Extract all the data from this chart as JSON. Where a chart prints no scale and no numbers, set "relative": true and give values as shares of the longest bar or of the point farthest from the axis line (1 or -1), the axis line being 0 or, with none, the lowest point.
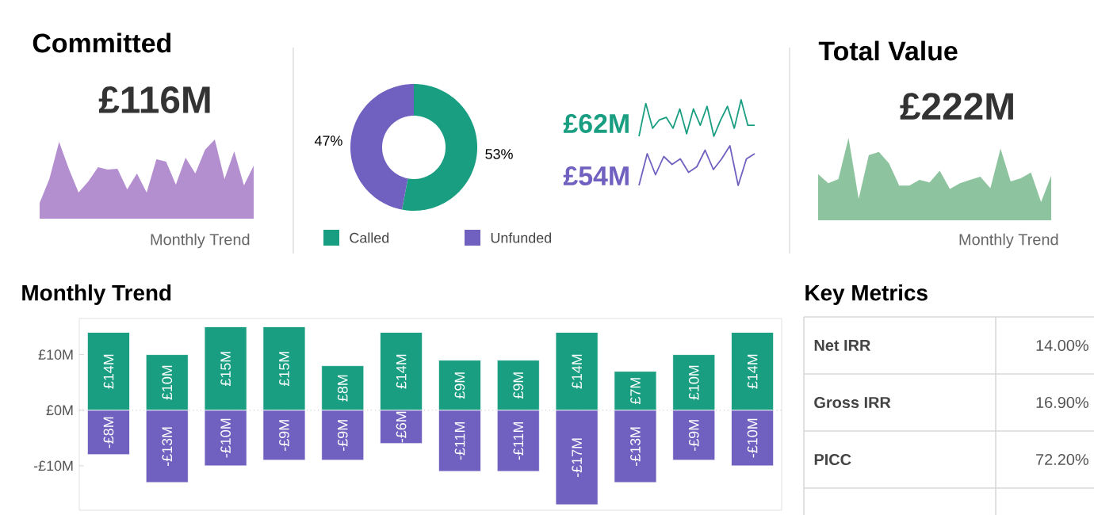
{
  "chart_data": [
    {
      "type": "area",
      "title": "Committed",
      "subtitle": "£116M",
      "xlabel": "Monthly Trend",
      "relative": true,
      "categories": [
        null,
        null,
        null,
        null,
        null,
        null,
        null,
        null,
        null,
        null,
        null,
        null,
        null,
        null,
        null,
        null,
        null,
        null,
        null,
        null,
        null,
        null,
        null
      ],
      "series": [
        {
          "color": "#b48fd0",
          "values": [
            0.2,
            0.5,
            0.97,
            0.63,
            0.33,
            0.47,
            0.65,
            0.62,
            0.63,
            0.37,
            0.57,
            0.33,
            0.75,
            0.72,
            0.43,
            0.77,
            0.57,
            0.87,
            1,
            0.5,
            0.85,
            0.42,
            0.67
          ]
        }
      ]
    },
    {
      "type": "donut",
      "categories": [
        "Called",
        "Unfunded"
      ],
      "values": [
        53,
        47
      ],
      "colors": [
        "#1a9e82",
        "#7060bf"
      ],
      "value_labels": [
        "53%",
        "47%"
      ],
      "legend": "bottom"
    },
    {
      "type": "line",
      "relative": true,
      "categories": [
        null,
        null,
        null,
        null,
        null,
        null,
        null,
        null,
        null,
        null,
        null,
        null,
        null,
        null,
        null,
        null,
        null,
        null
      ],
      "series": [
        {
          "name": "£62M",
          "color": "#1a9e82",
          "values": [
            0,
            0.9,
            0.22,
            0.45,
            0.52,
            0.22,
            0.75,
            0.07,
            0.75,
            0.3,
            0.82,
            0,
            0.45,
            0.82,
            0.22,
            1,
            0.3,
            0.3
          ]
        }
      ]
    },
    {
      "type": "line",
      "relative": true,
      "categories": [
        null,
        null,
        null,
        null,
        null,
        null,
        null,
        null,
        null,
        null,
        null,
        null,
        null,
        null,
        null
      ],
      "series": [
        {
          "name": "£54M",
          "color": "#7060bf",
          "values": [
            0,
            0.8,
            0.27,
            0.73,
            0.53,
            0.67,
            0.33,
            0.47,
            0.89,
            0.4,
            0.67,
            1,
            0,
            0.67,
            0.8
          ]
        }
      ]
    },
    {
      "type": "area",
      "title": "Total Value",
      "subtitle": "£222M",
      "xlabel": "Monthly Trend",
      "relative": true,
      "categories": [
        null,
        null,
        null,
        null,
        null,
        null,
        null,
        null,
        null,
        null,
        null,
        null,
        null,
        null,
        null,
        null,
        null,
        null,
        null,
        null,
        null,
        null,
        null,
        null
      ],
      "series": [
        {
          "color": "#8dc49f",
          "values": [
            0.56,
            0.45,
            0.5,
            1,
            0.26,
            0.79,
            0.83,
            0.69,
            0.42,
            0.42,
            0.49,
            0.46,
            0.6,
            0.38,
            0.45,
            0.49,
            0.53,
            0.39,
            0.87,
            0.47,
            0.51,
            0.58,
            0.22,
            0.54
          ]
        }
      ]
    },
    {
      "type": "bar",
      "title": "Monthly Trend",
      "stacked": true,
      "categories": [
        null,
        null,
        null,
        null,
        null,
        null,
        null,
        null,
        null,
        null,
        null,
        null
      ],
      "ylim": [
        -18,
        16.5
      ],
      "yticks": [
        {
          "value": -10,
          "label": "-£10M"
        },
        {
          "value": 0,
          "label": "£0M"
        },
        {
          "value": 10,
          "label": "£10M"
        }
      ],
      "ref_lines": [
        {
          "axis": "y",
          "value": 0,
          "color": "#999999",
          "line_style": "dotted"
        }
      ],
      "series": [
        {
          "color": "#1a9e82",
          "values": [
            14,
            10,
            15,
            15,
            8,
            14,
            9,
            9,
            14,
            7,
            10,
            14
          ],
          "value_labels": [
            "£14M",
            "£10M",
            "£15M",
            "£15M",
            "£8M",
            "£14M",
            "£9M",
            "£9M",
            "£14M",
            "£7M",
            "£10M",
            "£14M"
          ]
        },
        {
          "color": "#7060bf",
          "values": [
            -8,
            -13,
            -10,
            -9,
            -9,
            -6,
            -11,
            -11,
            -17,
            -13,
            -9,
            -10
          ],
          "value_labels": [
            "-£8M",
            "-£13M",
            "-£10M",
            "-£9M",
            "-£9M",
            "-£6M",
            "-£11M",
            "-£11M",
            "-£17M",
            "-£13M",
            "-£9M",
            "-£10M"
          ]
        }
      ]
    },
    {
      "type": "other",
      "title": "Key Metrics",
      "categories": [
        "Net IRR",
        "Gross IRR",
        "PICC"
      ],
      "value_labels": [
        "14.00%",
        "16.90%",
        "72.20%"
      ]
    }
  ]
}
